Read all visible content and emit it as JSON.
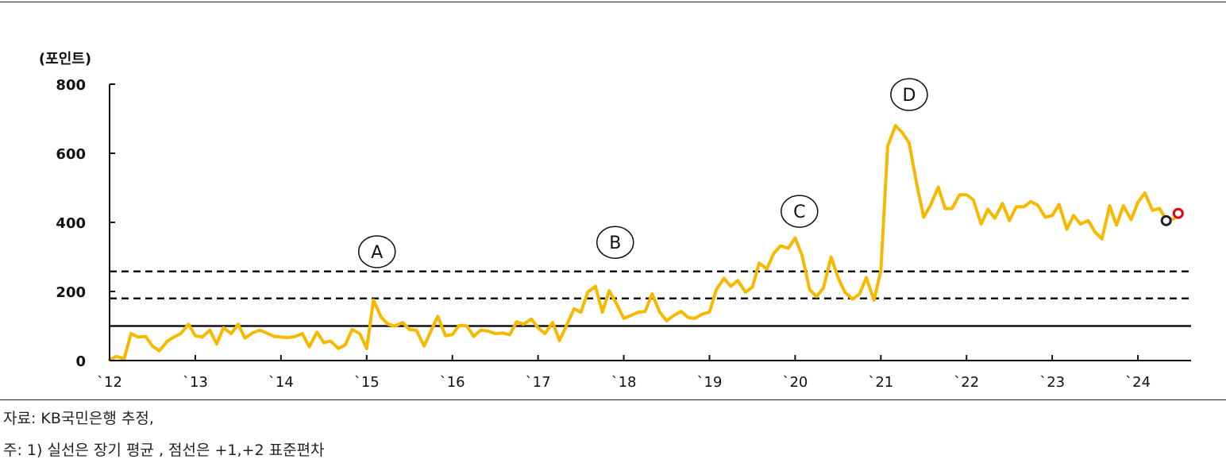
{
  "chart_data": {
    "type": "line",
    "ylabel": "(포인트)",
    "ylim": [
      0,
      800
    ],
    "yticks": [
      0,
      200,
      400,
      600,
      800
    ],
    "xlim": [
      2012,
      2024.62
    ],
    "xticks": [
      {
        "label": "`12",
        "x": 2012
      },
      {
        "label": "`13",
        "x": 2013
      },
      {
        "label": "`14",
        "x": 2014
      },
      {
        "label": "`15",
        "x": 2015
      },
      {
        "label": "`16",
        "x": 2016
      },
      {
        "label": "`17",
        "x": 2017
      },
      {
        "label": "`18",
        "x": 2018
      },
      {
        "label": "`19",
        "x": 2019
      },
      {
        "label": "`20",
        "x": 2020
      },
      {
        "label": "`21",
        "x": 2021
      },
      {
        "label": "`22",
        "x": 2022
      },
      {
        "label": "`23",
        "x": 2023
      },
      {
        "label": "`24",
        "x": 2024
      }
    ],
    "series": [
      {
        "color": "#f7b900",
        "values": [
          [
            2012.0,
            2
          ],
          [
            2012.08,
            12
          ],
          [
            2012.17,
            5
          ],
          [
            2012.25,
            78
          ],
          [
            2012.33,
            68
          ],
          [
            2012.42,
            70
          ],
          [
            2012.5,
            42
          ],
          [
            2012.58,
            28
          ],
          [
            2012.67,
            55
          ],
          [
            2012.75,
            68
          ],
          [
            2012.83,
            78
          ],
          [
            2012.92,
            105
          ],
          [
            2013.0,
            72
          ],
          [
            2013.08,
            68
          ],
          [
            2013.17,
            88
          ],
          [
            2013.25,
            48
          ],
          [
            2013.33,
            95
          ],
          [
            2013.42,
            78
          ],
          [
            2013.5,
            105
          ],
          [
            2013.58,
            65
          ],
          [
            2013.67,
            80
          ],
          [
            2013.75,
            88
          ],
          [
            2013.83,
            80
          ],
          [
            2013.92,
            70
          ],
          [
            2014.0,
            68
          ],
          [
            2014.08,
            66
          ],
          [
            2014.17,
            70
          ],
          [
            2014.25,
            78
          ],
          [
            2014.33,
            40
          ],
          [
            2014.42,
            82
          ],
          [
            2014.5,
            52
          ],
          [
            2014.58,
            56
          ],
          [
            2014.67,
            35
          ],
          [
            2014.75,
            45
          ],
          [
            2014.83,
            90
          ],
          [
            2014.92,
            78
          ],
          [
            2015.0,
            35
          ],
          [
            2015.08,
            175
          ],
          [
            2015.17,
            125
          ],
          [
            2015.25,
            105
          ],
          [
            2015.33,
            100
          ],
          [
            2015.42,
            110
          ],
          [
            2015.5,
            90
          ],
          [
            2015.58,
            88
          ],
          [
            2015.67,
            42
          ],
          [
            2015.75,
            85
          ],
          [
            2015.83,
            128
          ],
          [
            2015.92,
            72
          ],
          [
            2016.0,
            75
          ],
          [
            2016.08,
            102
          ],
          [
            2016.17,
            100
          ],
          [
            2016.25,
            70
          ],
          [
            2016.33,
            88
          ],
          [
            2016.42,
            85
          ],
          [
            2016.5,
            78
          ],
          [
            2016.58,
            80
          ],
          [
            2016.67,
            75
          ],
          [
            2016.75,
            112
          ],
          [
            2016.83,
            105
          ],
          [
            2016.92,
            120
          ],
          [
            2017.0,
            95
          ],
          [
            2017.08,
            78
          ],
          [
            2017.17,
            110
          ],
          [
            2017.25,
            58
          ],
          [
            2017.33,
            100
          ],
          [
            2017.42,
            150
          ],
          [
            2017.5,
            140
          ],
          [
            2017.58,
            198
          ],
          [
            2017.67,
            215
          ],
          [
            2017.75,
            140
          ],
          [
            2017.83,
            202
          ],
          [
            2017.92,
            162
          ],
          [
            2018.0,
            122
          ],
          [
            2018.08,
            130
          ],
          [
            2018.17,
            140
          ],
          [
            2018.25,
            142
          ],
          [
            2018.33,
            193
          ],
          [
            2018.42,
            140
          ],
          [
            2018.5,
            115
          ],
          [
            2018.58,
            130
          ],
          [
            2018.67,
            142
          ],
          [
            2018.75,
            125
          ],
          [
            2018.83,
            122
          ],
          [
            2018.92,
            135
          ],
          [
            2019.0,
            140
          ],
          [
            2019.08,
            205
          ],
          [
            2019.17,
            238
          ],
          [
            2019.25,
            215
          ],
          [
            2019.33,
            232
          ],
          [
            2019.42,
            198
          ],
          [
            2019.5,
            212
          ],
          [
            2019.58,
            282
          ],
          [
            2019.67,
            265
          ],
          [
            2019.75,
            310
          ],
          [
            2019.83,
            332
          ],
          [
            2019.92,
            325
          ],
          [
            2020.0,
            355
          ],
          [
            2020.08,
            305
          ],
          [
            2020.17,
            205
          ],
          [
            2020.25,
            185
          ],
          [
            2020.33,
            210
          ],
          [
            2020.42,
            300
          ],
          [
            2020.5,
            240
          ],
          [
            2020.58,
            198
          ],
          [
            2020.67,
            178
          ],
          [
            2020.75,
            192
          ],
          [
            2020.83,
            240
          ],
          [
            2020.92,
            175
          ],
          [
            2021.0,
            260
          ],
          [
            2021.08,
            620
          ],
          [
            2021.17,
            680
          ],
          [
            2021.25,
            660
          ],
          [
            2021.33,
            630
          ],
          [
            2021.42,
            510
          ],
          [
            2021.5,
            415
          ],
          [
            2021.58,
            450
          ],
          [
            2021.67,
            502
          ],
          [
            2021.75,
            440
          ],
          [
            2021.83,
            440
          ],
          [
            2021.92,
            480
          ],
          [
            2022.0,
            480
          ],
          [
            2022.08,
            465
          ],
          [
            2022.17,
            395
          ],
          [
            2022.25,
            438
          ],
          [
            2022.33,
            412
          ],
          [
            2022.42,
            455
          ],
          [
            2022.5,
            405
          ],
          [
            2022.58,
            445
          ],
          [
            2022.67,
            445
          ],
          [
            2022.75,
            460
          ],
          [
            2022.83,
            450
          ],
          [
            2022.92,
            415
          ],
          [
            2023.0,
            420
          ],
          [
            2023.08,
            452
          ],
          [
            2023.17,
            380
          ],
          [
            2023.25,
            420
          ],
          [
            2023.33,
            395
          ],
          [
            2023.42,
            405
          ],
          [
            2023.5,
            372
          ],
          [
            2023.58,
            352
          ],
          [
            2023.67,
            448
          ],
          [
            2023.75,
            392
          ],
          [
            2023.83,
            448
          ],
          [
            2023.92,
            408
          ],
          [
            2024.0,
            458
          ],
          [
            2024.08,
            485
          ],
          [
            2024.17,
            435
          ],
          [
            2024.25,
            440
          ],
          [
            2024.33,
            408
          ],
          [
            2024.42,
            410
          ]
        ]
      }
    ],
    "reference_lines": [
      {
        "value": 100,
        "style": "solid"
      },
      {
        "value": 180,
        "style": "dashed"
      },
      {
        "value": 258,
        "style": "dashed"
      }
    ],
    "markers": [
      {
        "x": 2024.33,
        "y": 405,
        "color": "#222222"
      },
      {
        "x": 2024.47,
        "y": 426,
        "color": "#e8000b"
      }
    ],
    "annotations": [
      {
        "label": "A",
        "x": 2015.12,
        "y": 315
      },
      {
        "label": "B",
        "x": 2017.9,
        "y": 342
      },
      {
        "label": "C",
        "x": 2020.05,
        "y": 432
      },
      {
        "label": "D",
        "x": 2021.33,
        "y": 770
      }
    ],
    "grid": false,
    "legend": "none"
  },
  "notes": {
    "source": "자료: KB국민은행 추정,",
    "footnote": "주: 1) 실선은 장기 평균 , 점선은 +1,+2 표준편차"
  }
}
